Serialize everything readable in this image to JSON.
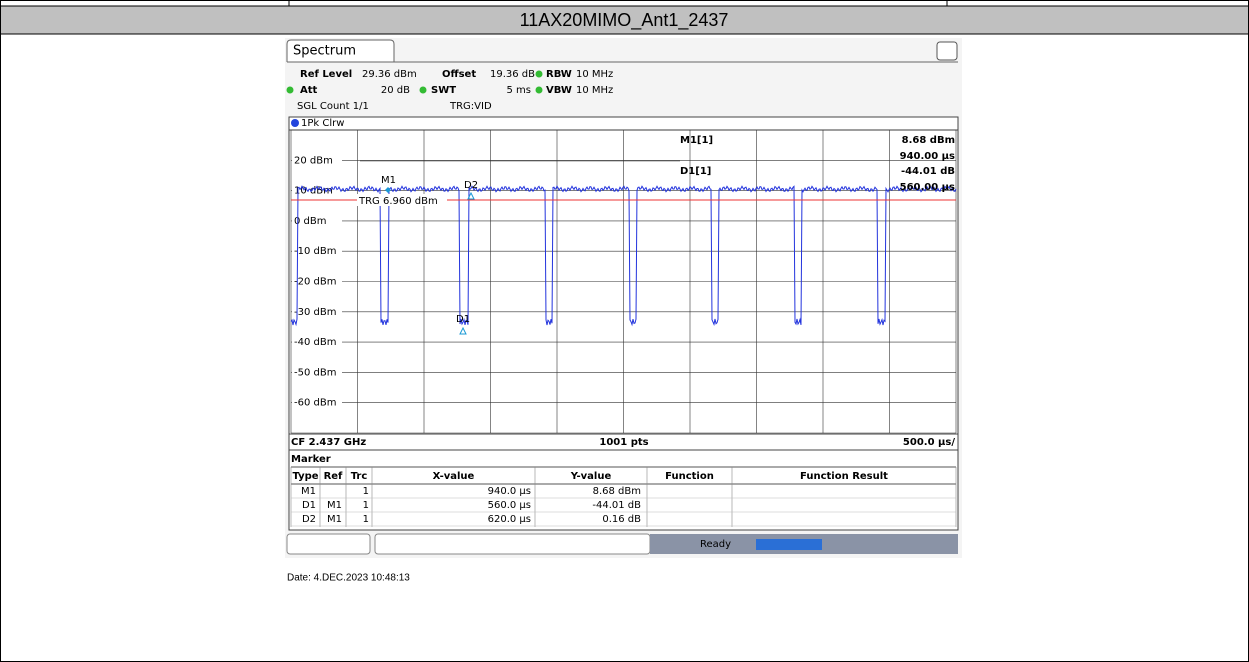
{
  "title": "11AX20MIMO_Ant1_2437",
  "tab": "Spectrum",
  "header": {
    "ref_level_label": "Ref Level",
    "ref_level": "29.36 dBm",
    "offset_label": "Offset",
    "offset": "19.36 dB",
    "rbw_label": "RBW",
    "rbw": "10 MHz",
    "att_label": "Att",
    "att": "20 dB",
    "swt_label": "SWT",
    "swt": "5 ms",
    "vbw_label": "VBW",
    "vbw": "10 MHz",
    "sgl": "SGL Count 1/1",
    "trg": "TRG:VID"
  },
  "trace_label": "1Pk Clrw",
  "y_labels": [
    "20 dBm",
    "10 dBm",
    "0 dBm",
    "-10 dBm",
    "-20 dBm",
    "-30 dBm",
    "-40 dBm",
    "-50 dBm",
    "-60 dBm"
  ],
  "readout": {
    "m1": "M1[1]",
    "m1_y": "8.68 dBm",
    "m1_x": "940.00 µs",
    "d1": "D1[1]",
    "d1_y": "-44.01 dB",
    "d1_x": "560.00 µs"
  },
  "plot_markers": [
    "M1",
    "D2",
    "D1"
  ],
  "trg_line": "TRG 6.960 dBm",
  "footer": {
    "cf": "CF 2.437 GHz",
    "pts": "1001 pts",
    "span": "500.0 µs/"
  },
  "marker_table": {
    "title": "Marker",
    "columns": [
      "Type",
      "Ref",
      "Trc",
      "X-value",
      "Y-value",
      "Function",
      "Function Result"
    ],
    "rows": [
      {
        "type": "M1",
        "trc": "1",
        "x": "940.0 µs",
        "y": "8.68 dBm"
      },
      {
        "type": "D1",
        "ref": "M1",
        "trc": "1",
        "x": "560.0 µs",
        "y": "-44.01 dB"
      },
      {
        "type": "D2",
        "ref": "M1",
        "trc": "1",
        "x": "620.0 µs",
        "y": "0.16 dB"
      }
    ]
  },
  "status": "Ready",
  "date": "Date: 4.DEC.2023 10:48:13"
}
